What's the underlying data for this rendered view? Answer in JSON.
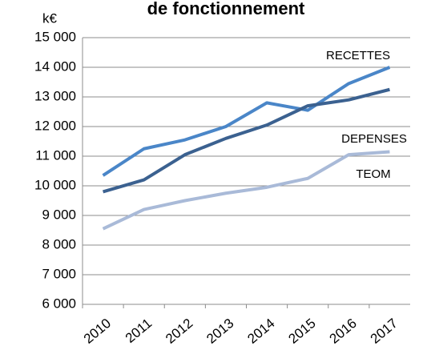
{
  "chart_data": {
    "type": "line",
    "title": "de fonctionnement",
    "y_label": "k€",
    "categories": [
      "2010",
      "2011",
      "2012",
      "2013",
      "2014",
      "2015",
      "2016",
      "2017"
    ],
    "series": [
      {
        "name": "RECETTES",
        "color": "#4a86c8",
        "values": [
          10350,
          11250,
          11550,
          12000,
          12800,
          12550,
          13450,
          14000
        ]
      },
      {
        "name": "DEPENSES",
        "color": "#3b6190",
        "values": [
          9800,
          10200,
          11050,
          11600,
          12050,
          12700,
          12900,
          13250
        ]
      },
      {
        "name": "TEOM",
        "color": "#a9bad8",
        "values": [
          8550,
          9200,
          9500,
          9750,
          9950,
          10250,
          11050,
          11150
        ]
      }
    ],
    "ylim": [
      6000,
      15000
    ],
    "yticks": [
      {
        "value": 6000,
        "label": "6 000"
      },
      {
        "value": 7000,
        "label": "7 000"
      },
      {
        "value": 8000,
        "label": "8 000"
      },
      {
        "value": 9000,
        "label": "9 000"
      },
      {
        "value": 10000,
        "label": "10 000"
      },
      {
        "value": 11000,
        "label": "11 000"
      },
      {
        "value": 12000,
        "label": "12 000"
      },
      {
        "value": 13000,
        "label": "13 000"
      },
      {
        "value": 14000,
        "label": "14 000"
      },
      {
        "value": 15000,
        "label": "15 000"
      }
    ],
    "grid": true
  }
}
